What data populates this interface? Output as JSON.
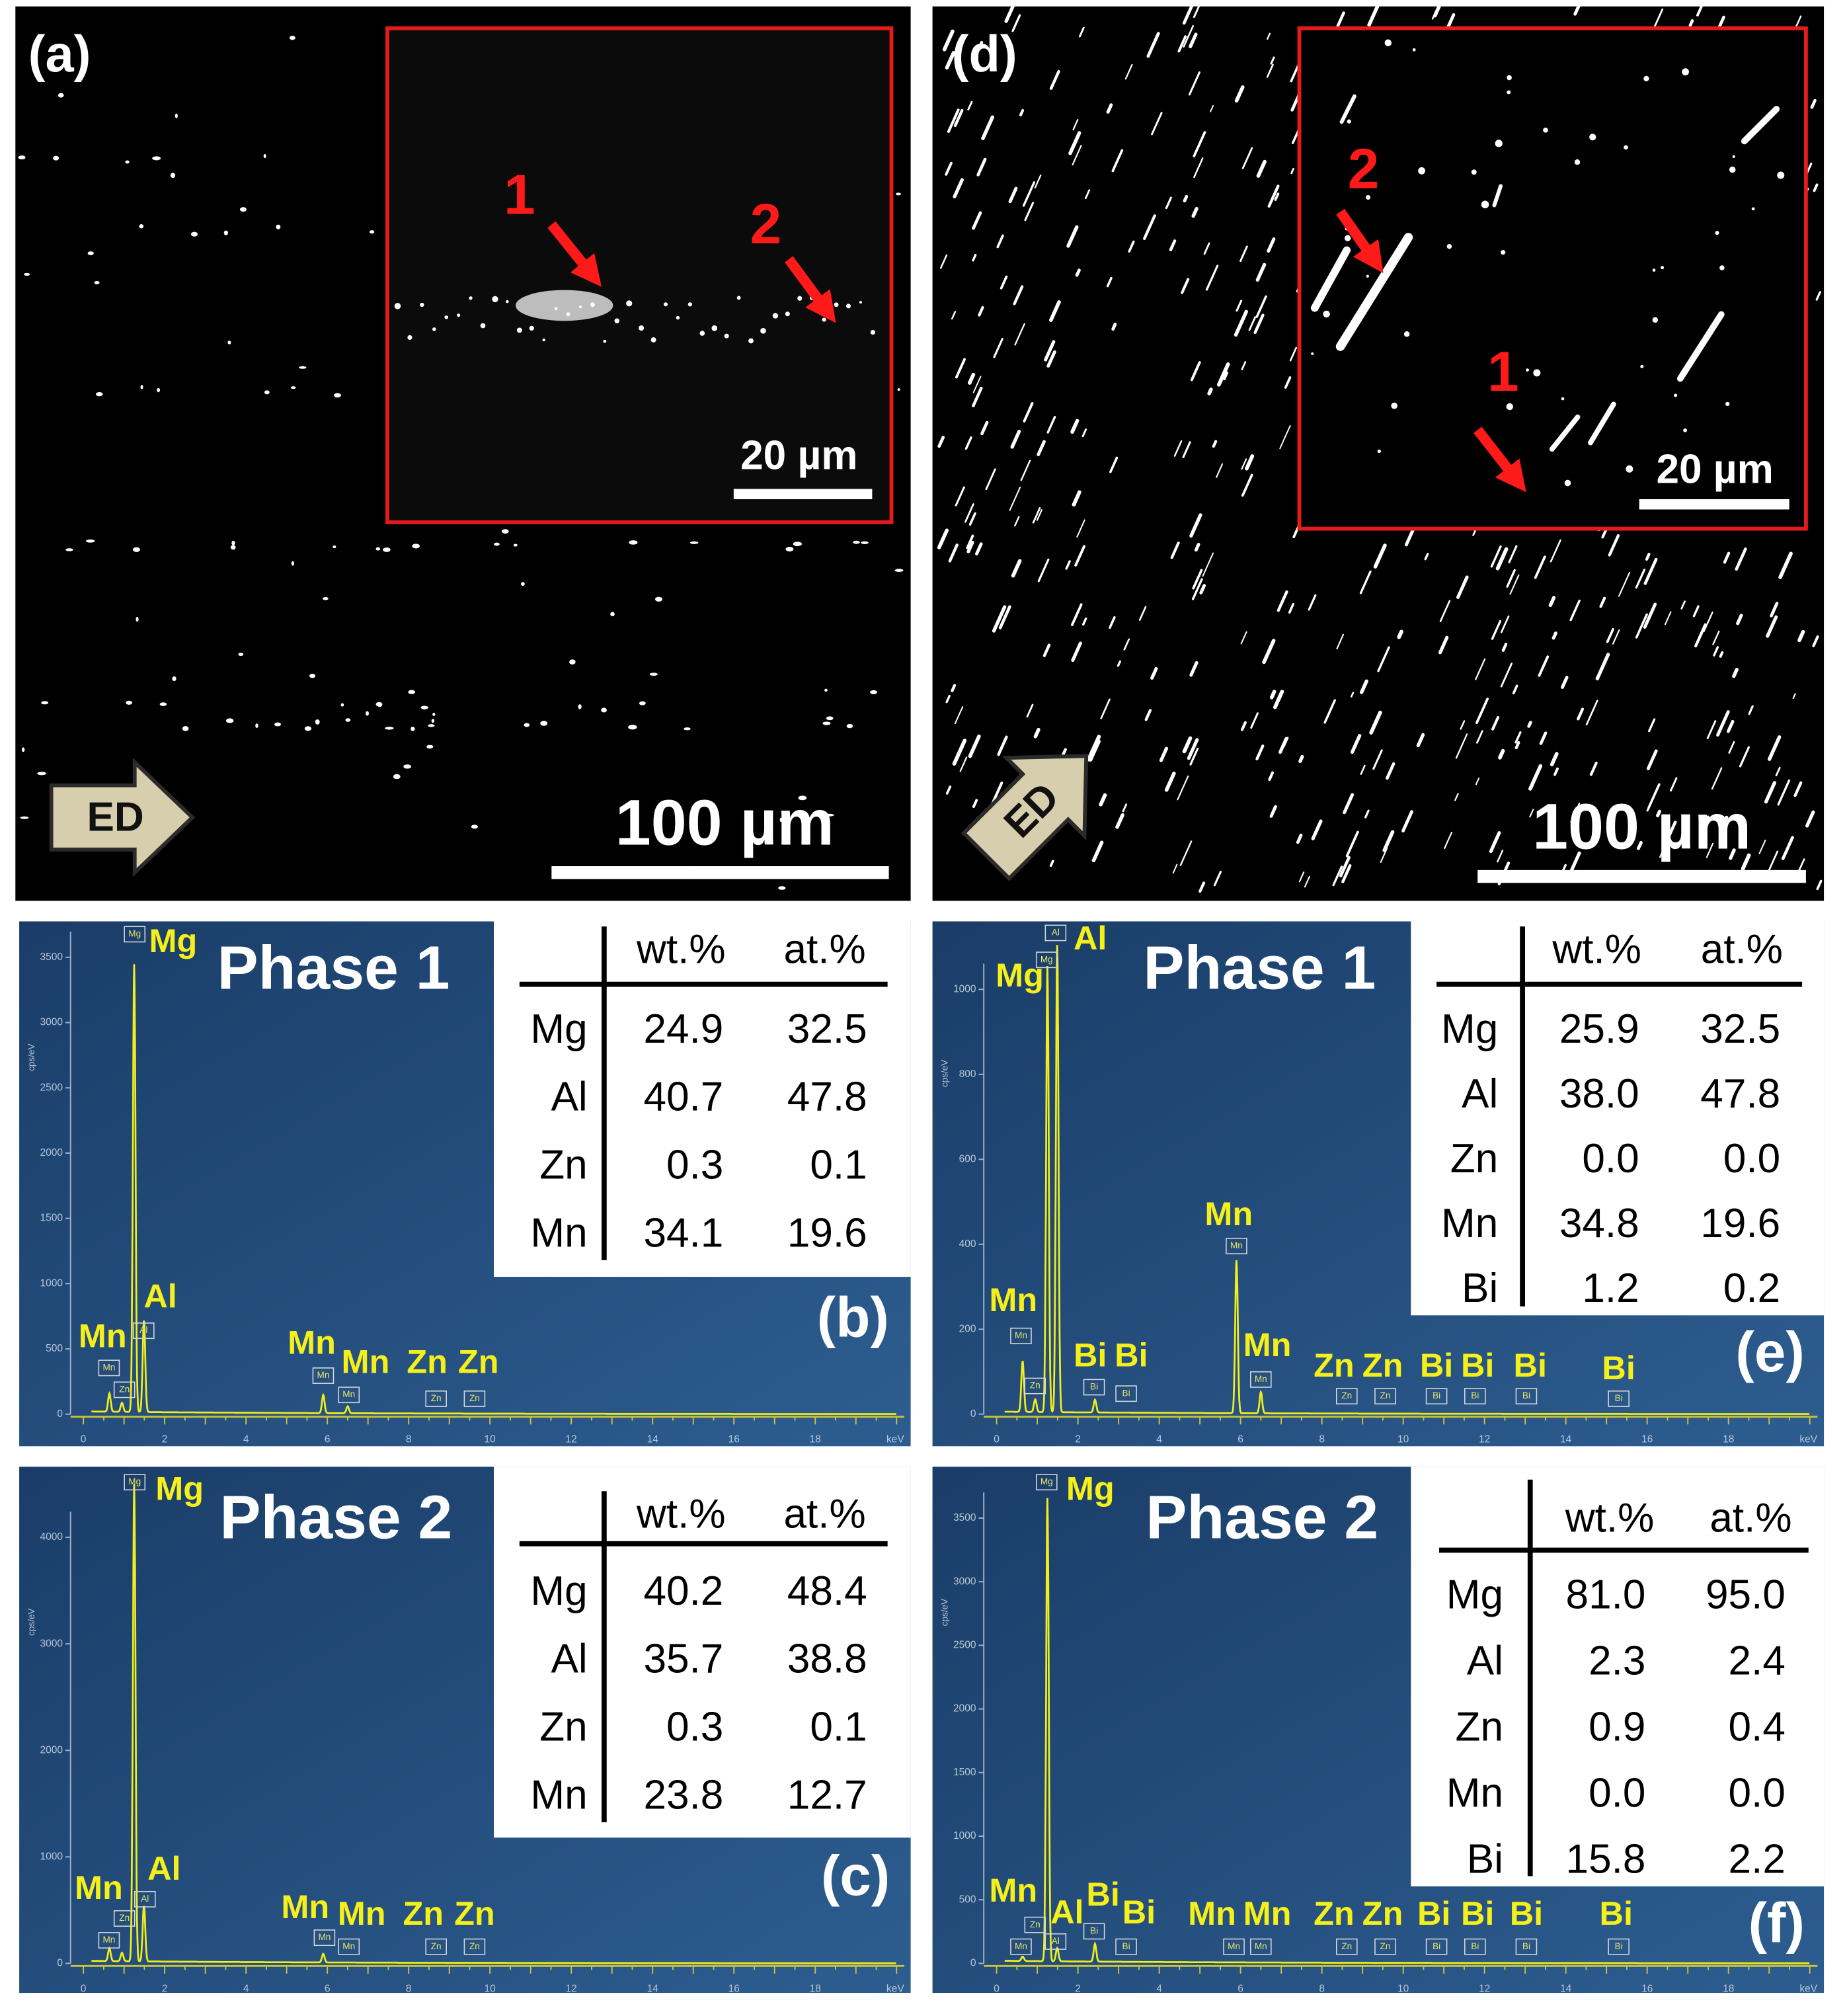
{
  "micrographs": [
    {
      "label": "(a)",
      "inset_scale": "20 µm",
      "scale": "100 µm",
      "direction": "ED",
      "arrows": [
        "1",
        "2"
      ]
    },
    {
      "label": "(d)",
      "inset_scale": "20 µm",
      "scale": "100 µm",
      "direction": "ED",
      "arrows": [
        "2",
        "1"
      ]
    }
  ],
  "spectra": [
    {
      "label": "(b)",
      "phase": "Phase 1",
      "y_axis": "cps/eV",
      "x_unit": "keV",
      "yticks": [
        "0",
        "500",
        "1000",
        "1500",
        "2000",
        "2500",
        "3000",
        "3500"
      ],
      "xticks": [
        "0",
        "2",
        "4",
        "6",
        "8",
        "10",
        "12",
        "14",
        "16",
        "18"
      ],
      "peak_labels": [
        "Mg",
        "Al",
        "Mn",
        "Mn",
        "Mn",
        "Zn",
        "Zn"
      ],
      "peak_tags": [
        "Mg",
        "Al",
        "Mn",
        "Zn",
        "Mn",
        "Mn",
        "Zn",
        "Zn"
      ],
      "table": {
        "columns": [
          "wt.%",
          "at.%"
        ],
        "rows": [
          [
            "Mg",
            "24.9",
            "32.5"
          ],
          [
            "Al",
            "40.7",
            "47.8"
          ],
          [
            "Zn",
            "0.3",
            "0.1"
          ],
          [
            "Mn",
            "34.1",
            "19.6"
          ]
        ]
      }
    },
    {
      "label": "(e)",
      "phase": "Phase 1",
      "y_axis": "cps/eV",
      "x_unit": "keV",
      "yticks": [
        "0",
        "200",
        "400",
        "600",
        "800",
        "1000"
      ],
      "xticks": [
        "0",
        "2",
        "4",
        "6",
        "8",
        "10",
        "12",
        "14",
        "16",
        "18"
      ],
      "peak_labels": [
        "Al",
        "Mg",
        "Mn",
        "Mn",
        "Mn",
        "Bi",
        "Bi",
        "Zn",
        "Zn",
        "Bi",
        "Bi",
        "Bi",
        "Bi"
      ],
      "peak_tags": [
        "Al",
        "Mg",
        "Mn",
        "Mn",
        "Zn",
        "Mn",
        "Bi",
        "Bi",
        "Zn",
        "Zn",
        "Bi",
        "Bi",
        "Bi",
        "Bi"
      ],
      "table": {
        "columns": [
          "wt.%",
          "at.%"
        ],
        "rows": [
          [
            "Mg",
            "25.9",
            "32.5"
          ],
          [
            "Al",
            "38.0",
            "47.8"
          ],
          [
            "Zn",
            "0.0",
            "0.0"
          ],
          [
            "Mn",
            "34.8",
            "19.6"
          ],
          [
            "Bi",
            "1.2",
            "0.2"
          ]
        ]
      }
    },
    {
      "label": "(c)",
      "phase": "Phase 2",
      "y_axis": "cps/eV",
      "x_unit": "keV",
      "yticks": [
        "0",
        "1000",
        "2000",
        "3000",
        "4000"
      ],
      "xticks": [
        "0",
        "2",
        "4",
        "6",
        "8",
        "10",
        "12",
        "14",
        "16",
        "18"
      ],
      "peak_labels": [
        "Mg",
        "Al",
        "Mn",
        "Mn",
        "Mn",
        "Zn",
        "Zn"
      ],
      "peak_tags": [
        "Mg",
        "Al",
        "Zn",
        "Mn",
        "Mn",
        "Mn",
        "Zn",
        "Zn"
      ],
      "table": {
        "columns": [
          "wt.%",
          "at.%"
        ],
        "rows": [
          [
            "Mg",
            "40.2",
            "48.4"
          ],
          [
            "Al",
            "35.7",
            "38.8"
          ],
          [
            "Zn",
            "0.3",
            "0.1"
          ],
          [
            "Mn",
            "23.8",
            "12.7"
          ]
        ]
      }
    },
    {
      "label": "(f)",
      "phase": "Phase 2",
      "y_axis": "cps/eV",
      "x_unit": "keV",
      "yticks": [
        "0",
        "500",
        "1000",
        "1500",
        "2000",
        "2500",
        "3000",
        "3500"
      ],
      "xticks": [
        "0",
        "2",
        "4",
        "6",
        "8",
        "10",
        "12",
        "14",
        "16",
        "18"
      ],
      "peak_labels": [
        "Mg",
        "Mn",
        "Al",
        "Bi",
        "Bi",
        "Mn",
        "Mn",
        "Zn",
        "Zn",
        "Bi",
        "Bi",
        "Bi",
        "Bi"
      ],
      "peak_tags": [
        "Mg",
        "Zn",
        "Al",
        "Mn",
        "Bi",
        "Bi",
        "Mn",
        "Mn",
        "Zn",
        "Zn",
        "Bi",
        "Bi",
        "Bi",
        "Bi"
      ],
      "table": {
        "columns": [
          "wt.%",
          "at.%"
        ],
        "rows": [
          [
            "Mg",
            "81.0",
            "95.0"
          ],
          [
            "Al",
            "2.3",
            "2.4"
          ],
          [
            "Zn",
            "0.9",
            "0.4"
          ],
          [
            "Mn",
            "0.0",
            "0.0"
          ],
          [
            "Bi",
            "15.8",
            "2.2"
          ]
        ]
      }
    }
  ]
}
